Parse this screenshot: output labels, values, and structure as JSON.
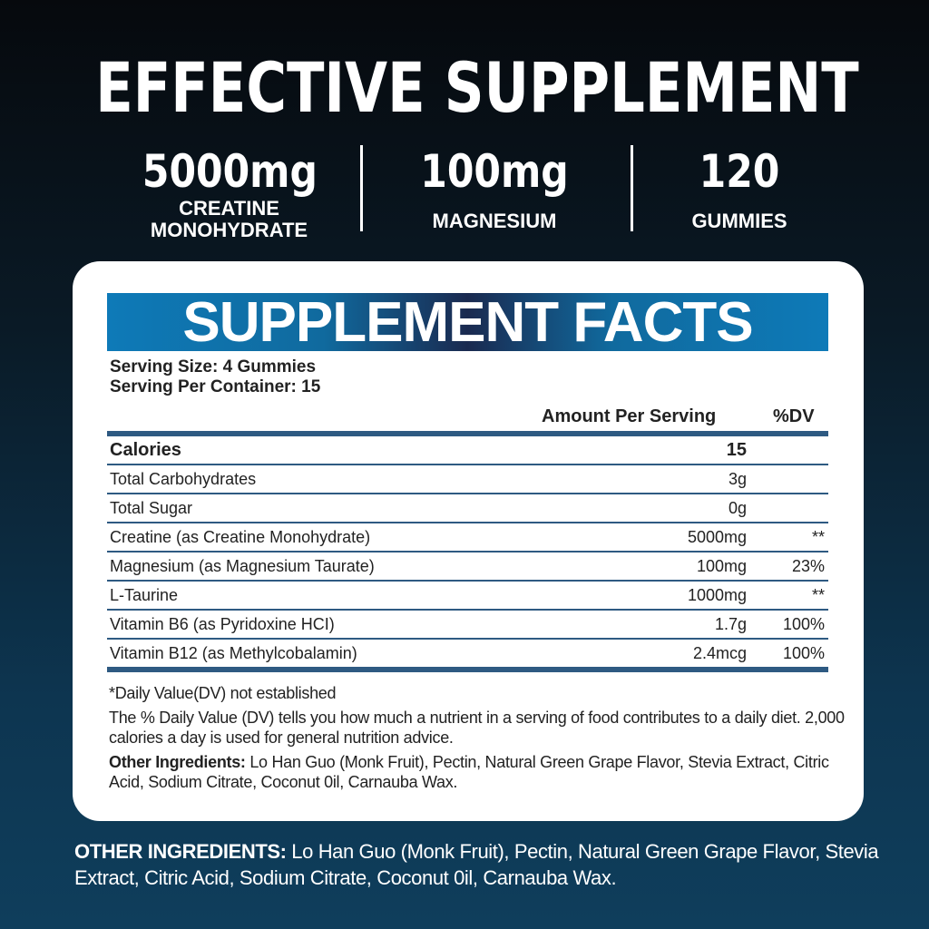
{
  "title": "EFFECTIVE SUPPLEMENT",
  "stats": [
    {
      "big": "5000mg",
      "small": "CREATINE MONOHYDRATE"
    },
    {
      "big": "100mg",
      "small": "MAGNESIUM"
    },
    {
      "big": "120",
      "small": "GUMMIES"
    }
  ],
  "facts": {
    "banner": "SUPPLEMENT FACTS",
    "serving_size": "Serving Size: 4 Gummies",
    "serving_per_container": "Serving Per Container: 15",
    "amount_header": "Amount Per Serving",
    "dv_header": "%DV",
    "rows": [
      {
        "name": "Calories",
        "amount": "15",
        "dv": ""
      },
      {
        "name": "Total Carbohydrates",
        "amount": "3g",
        "dv": ""
      },
      {
        "name": "Total Sugar",
        "amount": "0g",
        "dv": ""
      },
      {
        "name": "Creatine (as Creatine Monohydrate)",
        "amount": "5000mg",
        "dv": "**"
      },
      {
        "name": "Magnesium (as Magnesium Taurate)",
        "amount": "100mg",
        "dv": "23%"
      },
      {
        "name": "L-Taurine",
        "amount": "1000mg",
        "dv": "**"
      },
      {
        "name": "Vitamin B6 (as Pyridoxine HCI)",
        "amount": "1.7g",
        "dv": "100%"
      },
      {
        "name": "Vitamin B12 (as Methylcobalamin)",
        "amount": "2.4mcg",
        "dv": "100%"
      }
    ],
    "note1": "*Daily Value(DV) not established",
    "note2": "The % Daily Value (DV) tells you how much a nutrient in a serving of food contributes to a daily diet. 2,000 calories a day is used for general nutrition advice.",
    "other_label": "Other Ingredients:",
    "other_text": " Lo Han Guo (Monk Fruit), Pectin, Natural Green Grape Flavor, Stevia Extract, Citric Acid, Sodium Citrate, Coconut 0il, Carnauba Wax."
  },
  "footer": {
    "label": "OTHER INGREDIENTS:",
    "text": " Lo Han Guo (Monk Fruit), Pectin, Natural Green Grape Flavor, Stevia Extract, Citric Acid, Sodium Citrate, Coconut 0il, Carnauba Wax."
  }
}
